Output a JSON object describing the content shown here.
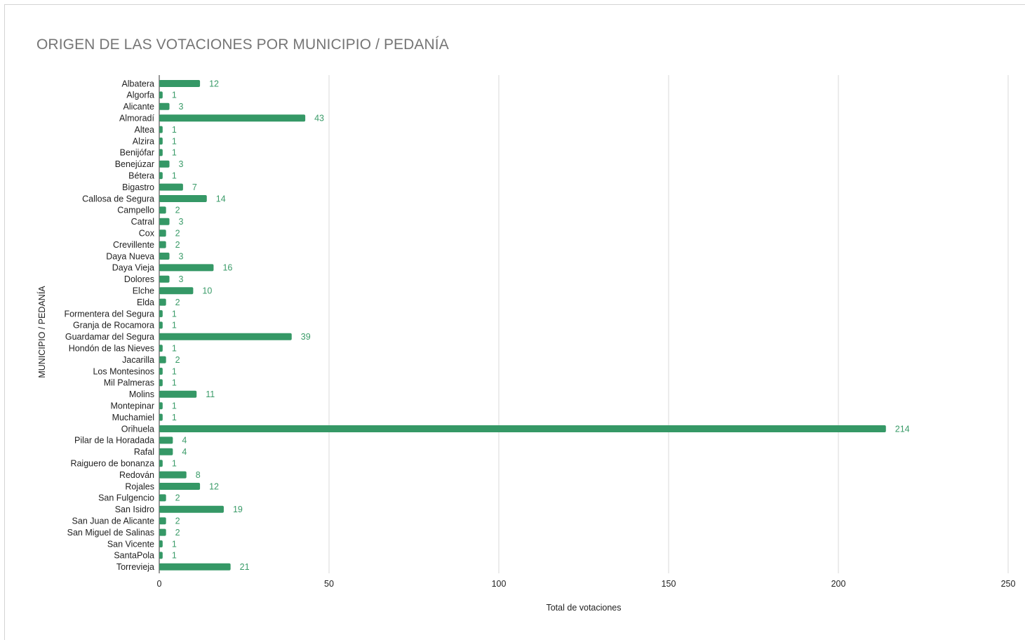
{
  "chart_data": {
    "type": "bar",
    "orientation": "horizontal",
    "title": "ORIGEN DE LAS VOTACIONES POR MUNICIPIO / PEDANÍA",
    "xlabel": "Total de votaciones",
    "ylabel": "MUNICIPIO / PEDANÍA",
    "xlim": [
      0,
      250
    ],
    "xticks": [
      "0",
      "50",
      "100",
      "150",
      "200",
      "250"
    ],
    "grid": true,
    "legend": "none",
    "bar_color": "#359866",
    "label_color": "#3a9b68",
    "categories": [
      "Albatera",
      "Algorfa",
      "Alicante",
      "Almoradí",
      "Altea",
      "Alzira",
      "Benijófar",
      "Benejúzar",
      "Bétera",
      "Bigastro",
      "Callosa de Segura",
      "Campello",
      "Catral",
      "Cox",
      "Crevillente",
      "Daya Nueva",
      "Daya Vieja",
      "Dolores",
      "Elche",
      "Elda",
      "Formentera del Segura",
      "Granja de Rocamora",
      "Guardamar del Segura",
      "Hondón de las Nieves",
      "Jacarilla",
      "Los Montesinos",
      "Mil Palmeras",
      "Molins",
      "Montepinar",
      "Muchamiel",
      "Orihuela",
      "Pilar de la Horadada",
      "Rafal",
      "Raiguero de bonanza",
      "Redován",
      "Rojales",
      "San Fulgencio",
      "San Isidro",
      "San Juan de Alicante",
      "San Miguel de Salinas",
      "San Vicente",
      "SantaPola",
      "Torrevieja"
    ],
    "values": [
      12,
      1,
      3,
      43,
      1,
      1,
      1,
      3,
      1,
      7,
      14,
      2,
      3,
      2,
      2,
      3,
      16,
      3,
      10,
      2,
      1,
      1,
      39,
      1,
      2,
      1,
      1,
      11,
      1,
      1,
      214,
      4,
      4,
      1,
      8,
      12,
      2,
      19,
      2,
      2,
      1,
      1,
      21
    ]
  }
}
